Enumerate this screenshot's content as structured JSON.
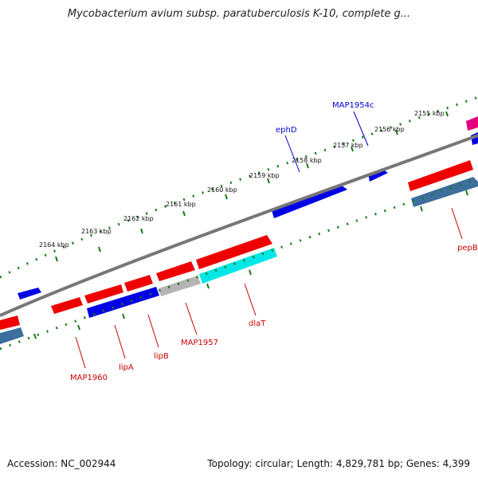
{
  "title": "Mycobacterium avium subsp. paratuberculosis K-10, complete g...",
  "footer": {
    "accession": "Accession: NC_002944",
    "summary": "Topology: circular; Length: 4,829,781 bp; Genes: 4,399"
  },
  "scale": {
    "ticks": [
      "2155 kbp",
      "2156 kbp",
      "2157 kbp",
      "2158 kbp",
      "2159 kbp",
      "2160 kbp",
      "2161 kbp",
      "2162 kbp",
      "2163 kbp",
      "2164 kbp"
    ]
  },
  "colors": {
    "backbone": "#808080",
    "tick_mark": "#1a7a1a",
    "blue_gene": "#0000e6",
    "red_gene": "#ee0000",
    "cyan_gene": "#00e6e6",
    "gray_gene": "#b4b4b4",
    "steelblue_gene": "#3c6e9e",
    "magenta_gene": "#e6007e",
    "label_red": "#cc0000",
    "label_blue": "#0000cc"
  },
  "labels": {
    "outer": [
      "MAP1954c",
      "ephD"
    ],
    "inner": [
      "MAP1960",
      "lipA",
      "lipB",
      "MAP1957",
      "dlaT",
      "pepB"
    ]
  }
}
